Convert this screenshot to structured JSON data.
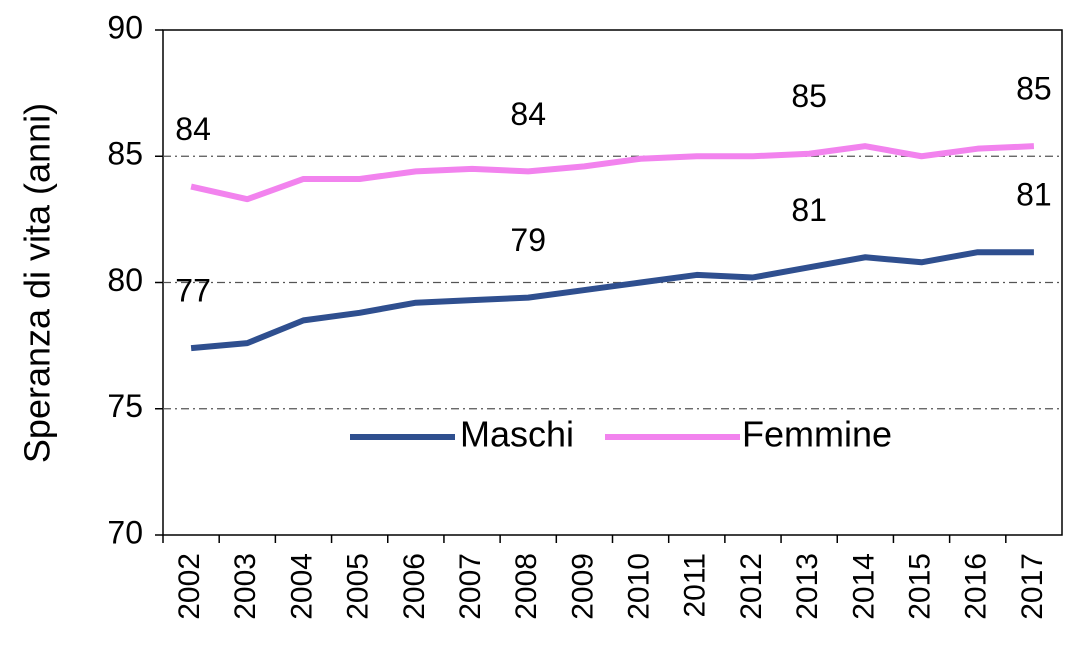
{
  "chart_data": {
    "type": "line",
    "y_label": "Speranza di vita (anni)",
    "categories": [
      "2002",
      "2003",
      "2004",
      "2005",
      "2006",
      "2007",
      "2008",
      "2009",
      "2010",
      "2011",
      "2012",
      "2013",
      "2014",
      "2015",
      "2016",
      "2017"
    ],
    "series": [
      {
        "name": "Maschi",
        "color": "#2f4f8f",
        "values": [
          77.4,
          77.6,
          78.5,
          78.8,
          79.2,
          79.3,
          79.4,
          79.7,
          80.0,
          80.3,
          80.2,
          80.6,
          81.0,
          80.8,
          81.2,
          81.2
        ],
        "value_labels": [
          "77",
          null,
          null,
          null,
          null,
          null,
          "79",
          null,
          null,
          null,
          null,
          "81",
          null,
          null,
          null,
          "81"
        ]
      },
      {
        "name": "Femmine",
        "color": "#f283ee",
        "values": [
          83.8,
          83.3,
          84.1,
          84.1,
          84.4,
          84.5,
          84.4,
          84.6,
          84.9,
          85.0,
          85.0,
          85.1,
          85.4,
          85.0,
          85.3,
          85.4
        ],
        "value_labels": [
          "84",
          null,
          null,
          null,
          null,
          null,
          "84",
          null,
          null,
          null,
          null,
          "85",
          null,
          null,
          null,
          "85"
        ]
      }
    ],
    "ylim": [
      70,
      90
    ],
    "yticks": [
      70,
      75,
      80,
      85,
      90
    ],
    "grid": true,
    "legend": "bottom"
  }
}
